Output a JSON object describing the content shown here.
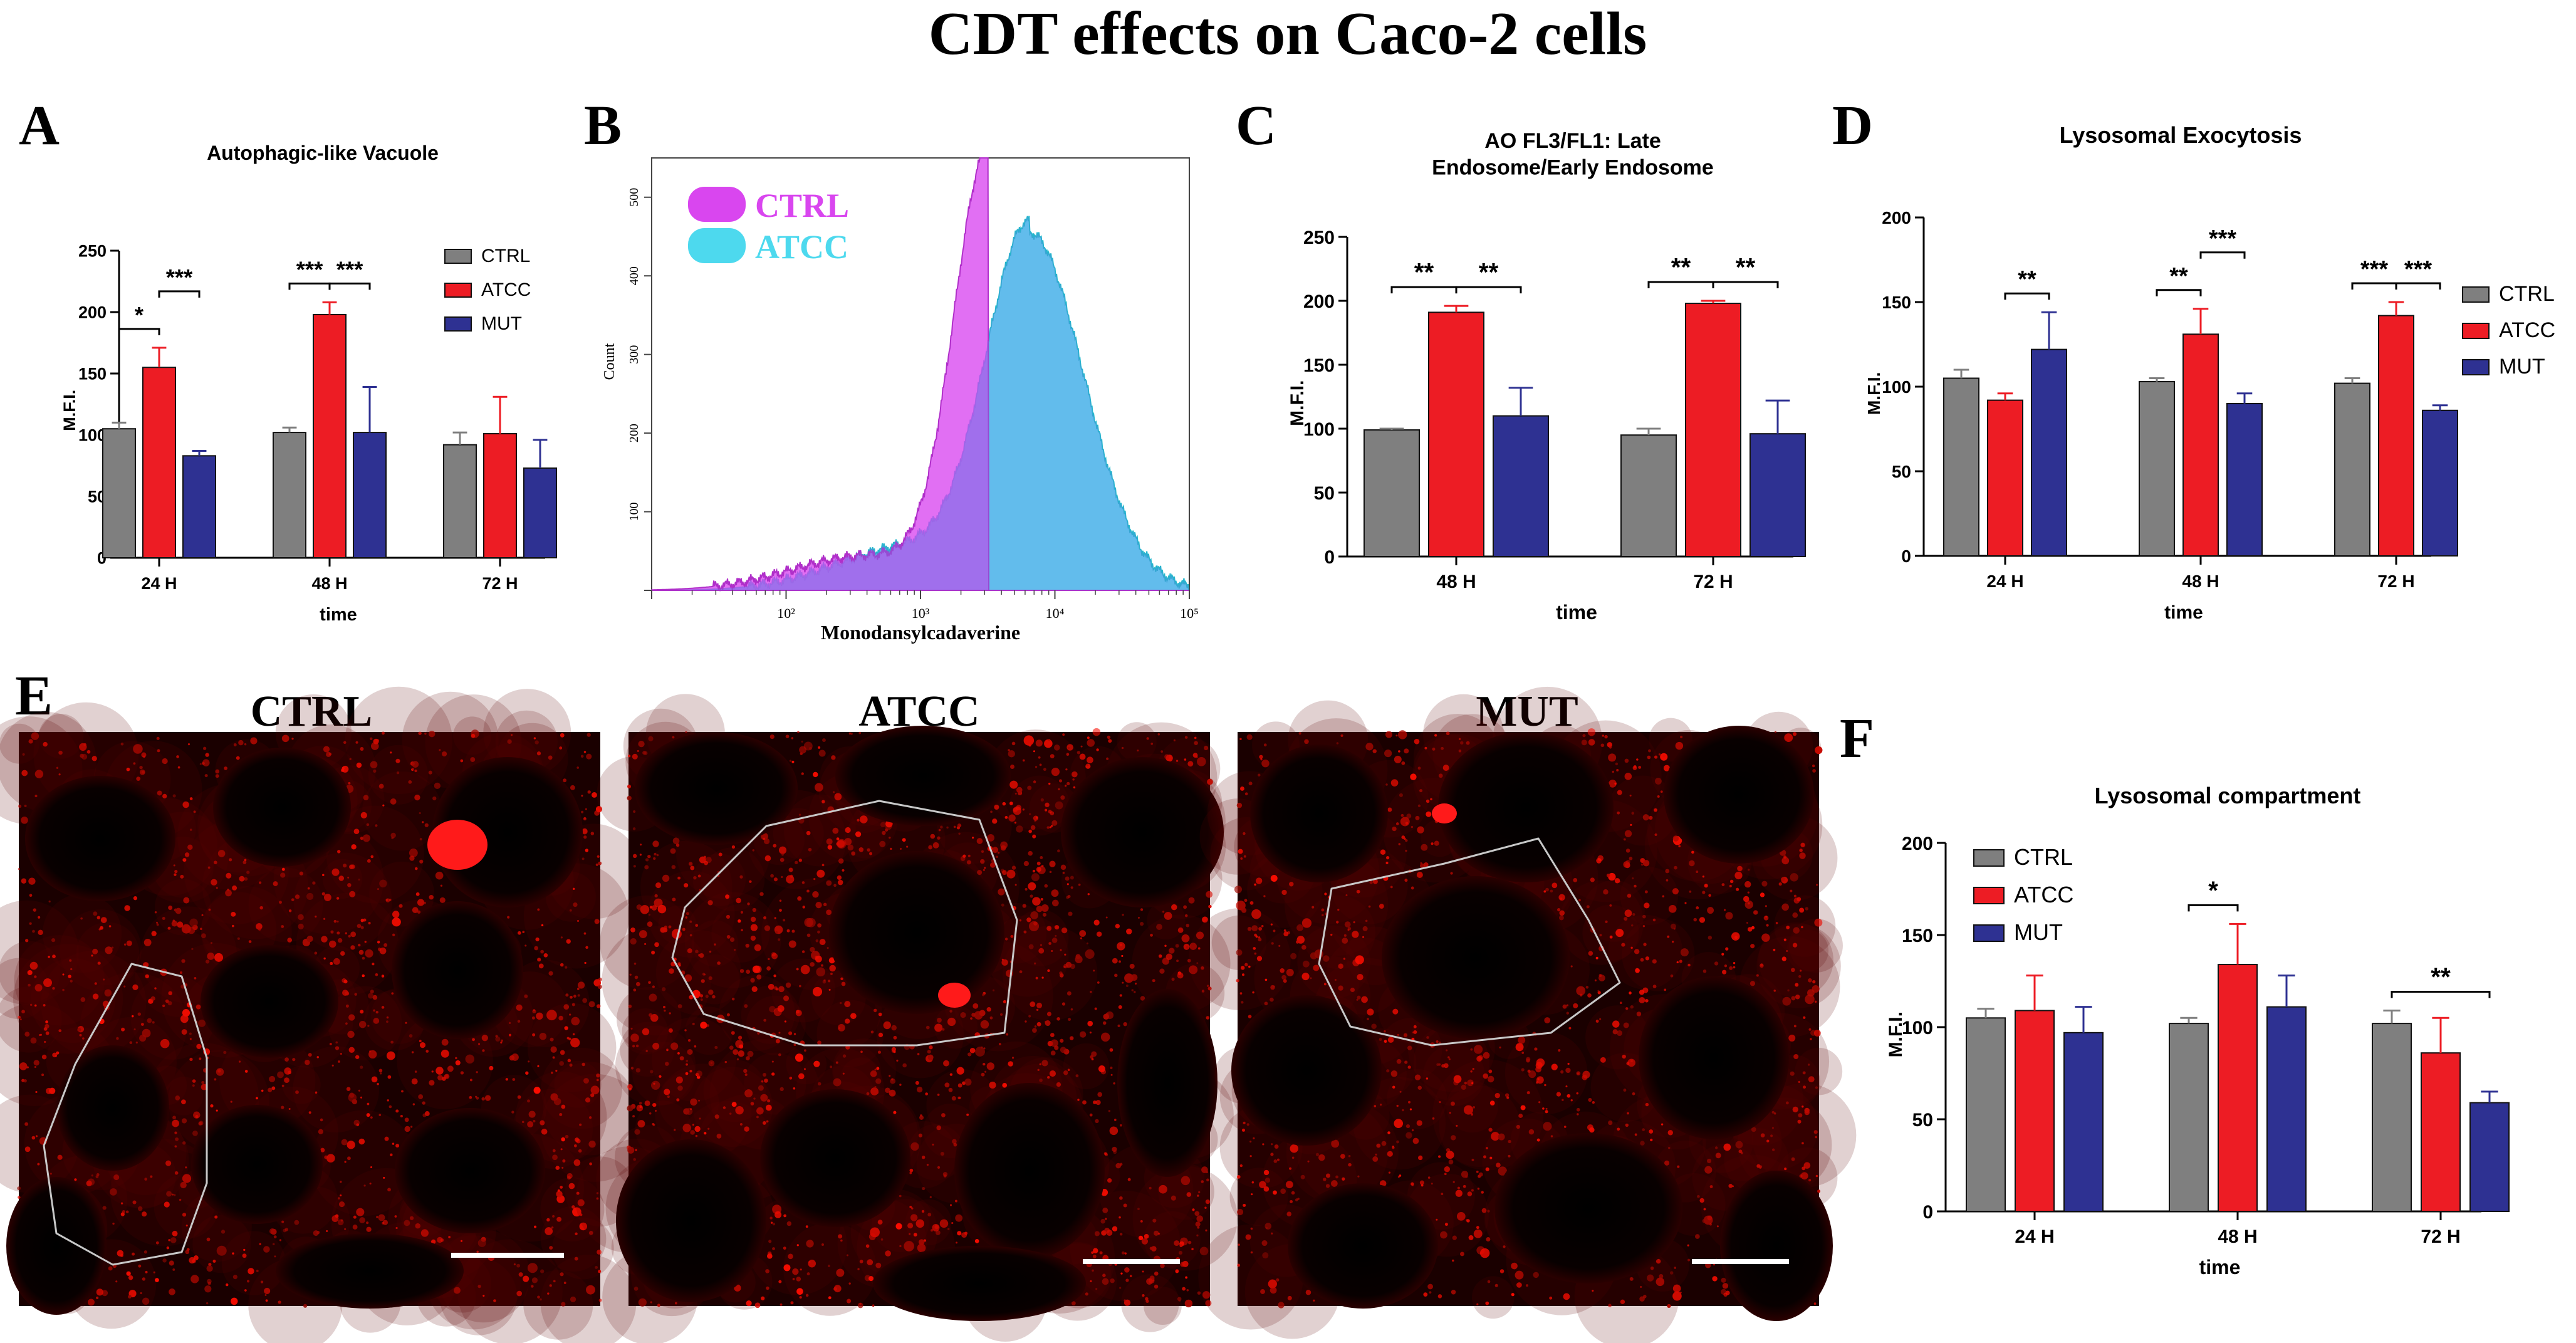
{
  "figure_title": "CDT effects on Caco-2 cells",
  "colors": {
    "CTRL": "#7f7f7f",
    "ATCC": "#ed1c24",
    "MUT": "#2e3192",
    "hist_ctrl": "#d946ef",
    "hist_atcc": "#4dd9ee"
  },
  "panels": {
    "A": {
      "letter": "A"
    },
    "B": {
      "letter": "B"
    },
    "C": {
      "letter": "C"
    },
    "D": {
      "letter": "D"
    },
    "E": {
      "letter": "E",
      "micrographs": [
        {
          "label": "CTRL"
        },
        {
          "label": "ATCC"
        },
        {
          "label": "MUT"
        }
      ]
    },
    "F": {
      "letter": "F"
    }
  },
  "chart_data": [
    {
      "panel": "A",
      "type": "bar",
      "title": "Autophagic-like Vacuole",
      "xlabel": "time",
      "ylabel": "M.F.I.",
      "categories": [
        "24 H",
        "48 H",
        "72 H"
      ],
      "ylim": [
        0,
        250
      ],
      "yticks": [
        0,
        50,
        100,
        150,
        200,
        250
      ],
      "series": [
        {
          "name": "CTRL",
          "values": [
            105,
            102,
            92
          ],
          "errors": [
            5,
            4,
            10
          ]
        },
        {
          "name": "ATCC",
          "values": [
            155,
            198,
            101
          ],
          "errors": [
            16,
            10,
            30
          ]
        },
        {
          "name": "MUT",
          "values": [
            83,
            102,
            73
          ],
          "errors": [
            4,
            37,
            23
          ]
        }
      ],
      "legend": [
        "CTRL",
        "ATCC",
        "MUT"
      ],
      "legend_position": "right",
      "significance": [
        {
          "group": 0,
          "from": 0,
          "to": 1,
          "label": "*"
        },
        {
          "group": 0,
          "from": 1,
          "to": 2,
          "label": "***"
        },
        {
          "group": 1,
          "from": 0,
          "to": 1,
          "label": "***"
        },
        {
          "group": 1,
          "from": 1,
          "to": 2,
          "label": "***"
        }
      ]
    },
    {
      "panel": "B",
      "type": "area",
      "xlabel": "Monodansylcadaverine",
      "ylabel": "Count",
      "xscale": "log",
      "xlim": [
        10,
        100000
      ],
      "x_ticks": [
        "10²",
        "10³",
        "10⁴",
        "10⁵"
      ],
      "ylim": [
        0,
        550
      ],
      "yticks": [
        0,
        100,
        200,
        300,
        400,
        500
      ],
      "series": [
        {
          "name": "CTRL",
          "peak_x": 3200,
          "peak_y": 550,
          "spread": 0.22,
          "skew": -1.0,
          "left_tail": 0.08
        },
        {
          "name": "ATCC",
          "peak_x": 6500,
          "peak_y": 455,
          "spread": 0.32,
          "skew": 0.25,
          "left_tail": 0.12
        }
      ],
      "legend": [
        "CTRL",
        "ATCC"
      ],
      "legend_position": "top-left"
    },
    {
      "panel": "C",
      "type": "bar",
      "title": "AO FL3/FL1: Late\nEndosome/Early Endosome",
      "xlabel": "time",
      "ylabel": "M.F.I.",
      "categories": [
        "48 H",
        "72 H"
      ],
      "ylim": [
        0,
        250
      ],
      "yticks": [
        0,
        50,
        100,
        150,
        200,
        250
      ],
      "series": [
        {
          "name": "CTRL",
          "values": [
            99,
            95
          ],
          "errors": [
            1,
            5
          ]
        },
        {
          "name": "ATCC",
          "values": [
            191,
            198
          ],
          "errors": [
            5,
            2
          ]
        },
        {
          "name": "MUT",
          "values": [
            110,
            96
          ],
          "errors": [
            22,
            26
          ]
        }
      ],
      "significance": [
        {
          "group": 0,
          "from": 0,
          "to": 1,
          "label": "**"
        },
        {
          "group": 0,
          "from": 1,
          "to": 2,
          "label": "**"
        },
        {
          "group": 1,
          "from": 0,
          "to": 1,
          "label": "**"
        },
        {
          "group": 1,
          "from": 1,
          "to": 2,
          "label": "**"
        }
      ]
    },
    {
      "panel": "D",
      "type": "bar",
      "title": "Lysosomal Exocytosis",
      "xlabel": "time",
      "ylabel": "M.F.I.",
      "categories": [
        "24 H",
        "48 H",
        "72 H"
      ],
      "ylim": [
        0,
        200
      ],
      "yticks": [
        0,
        50,
        100,
        150,
        200
      ],
      "series": [
        {
          "name": "CTRL",
          "values": [
            105,
            103,
            102
          ],
          "errors": [
            5,
            2,
            3
          ]
        },
        {
          "name": "ATCC",
          "values": [
            92,
            131,
            142
          ],
          "errors": [
            4,
            15,
            8
          ]
        },
        {
          "name": "MUT",
          "values": [
            122,
            90,
            86
          ],
          "errors": [
            22,
            6,
            3
          ]
        }
      ],
      "legend": [
        "CTRL",
        "ATCC",
        "MUT"
      ],
      "legend_position": "right",
      "significance": [
        {
          "group": 0,
          "from": 1,
          "to": 2,
          "label": "**"
        },
        {
          "group": 1,
          "from": 0,
          "to": 1,
          "label": "**"
        },
        {
          "group": 1,
          "from": 1,
          "to": 2,
          "label": "***"
        },
        {
          "group": 2,
          "from": 0,
          "to": 1,
          "label": "***"
        },
        {
          "group": 2,
          "from": 1,
          "to": 2,
          "label": "***"
        }
      ]
    },
    {
      "panel": "F",
      "type": "bar",
      "title": "Lysosomal compartment",
      "xlabel": "time",
      "ylabel": "M.F.I.",
      "categories": [
        "24 H",
        "48 H",
        "72 H"
      ],
      "ylim": [
        0,
        200
      ],
      "yticks": [
        0,
        50,
        100,
        150,
        200
      ],
      "series": [
        {
          "name": "CTRL",
          "values": [
            105,
            102,
            102
          ],
          "errors": [
            5,
            3,
            7
          ]
        },
        {
          "name": "ATCC",
          "values": [
            109,
            134,
            86
          ],
          "errors": [
            19,
            22,
            19
          ]
        },
        {
          "name": "MUT",
          "values": [
            97,
            111,
            59
          ],
          "errors": [
            14,
            17,
            6
          ]
        }
      ],
      "legend": [
        "CTRL",
        "ATCC",
        "MUT"
      ],
      "legend_position": "top-left",
      "significance": [
        {
          "group": 1,
          "from": 0,
          "to": 1,
          "label": "*"
        },
        {
          "group": 2,
          "from": 0,
          "to": 2,
          "label": "**"
        }
      ]
    }
  ]
}
